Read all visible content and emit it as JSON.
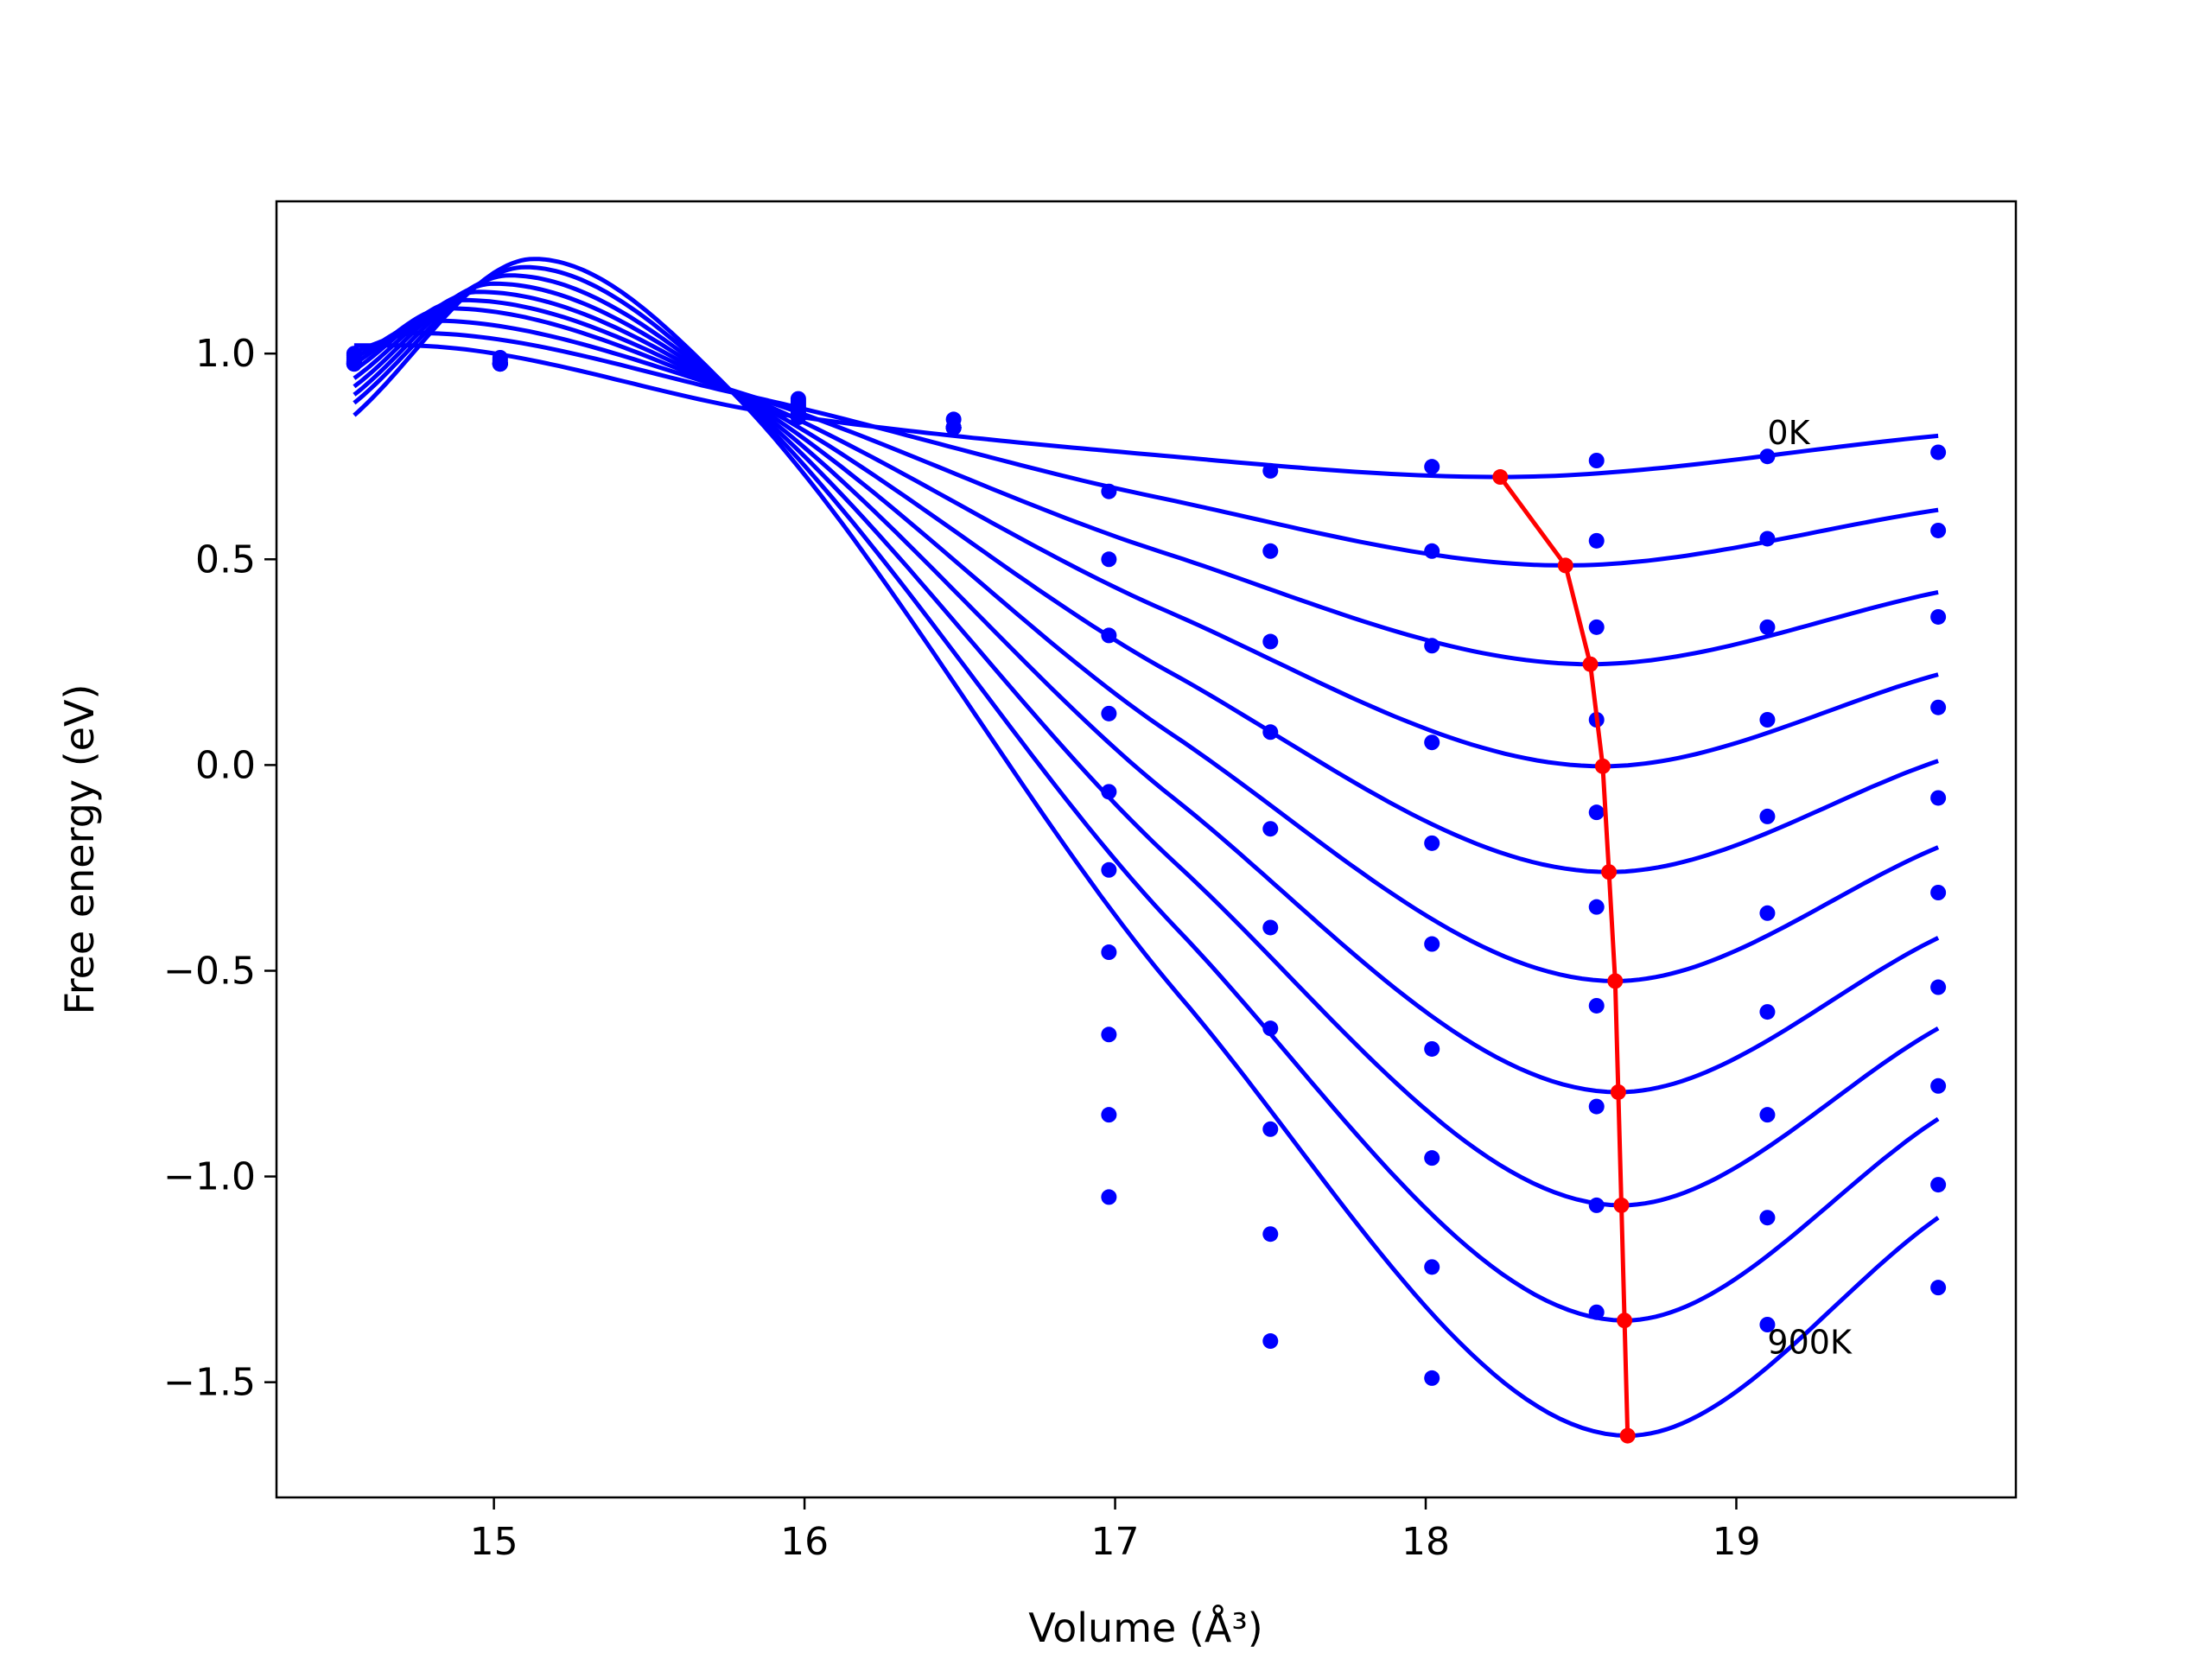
{
  "chart_data": {
    "type": "line",
    "xlabel": "Volume (Å³)",
    "ylabel": "Free energy (eV)",
    "xlim": [
      14.3,
      19.9
    ],
    "ylim": [
      -1.78,
      1.37
    ],
    "xticks": [
      15,
      16,
      17,
      18,
      19
    ],
    "xtick_labels": [
      "15",
      "16",
      "17",
      "18",
      "19"
    ],
    "yticks": [
      1.0,
      0.5,
      0.0,
      -0.5,
      -1.0,
      -1.5
    ],
    "ytick_labels": [
      "1.0",
      "0.5",
      "0.0",
      "−0.5",
      "−1.0",
      "−1.5"
    ],
    "grid": false,
    "annotations": [
      {
        "text": "0K",
        "x": 19.1,
        "y": 0.78
      },
      {
        "text": "900K",
        "x": 19.1,
        "y": -1.43
      }
    ],
    "colors": {
      "fit_curves": "#0000ff",
      "data_points": "#0000ff",
      "minimum_path": "#ff0000"
    },
    "fit_curves": {
      "v0": [
        18.24,
        18.45,
        18.53,
        18.57,
        18.59,
        18.61,
        18.62,
        18.63,
        18.64,
        18.65
      ],
      "e0": [
        0.7,
        0.485,
        0.245,
        -0.003,
        -0.26,
        -0.525,
        -0.795,
        -1.07,
        -1.35,
        -1.63
      ],
      "start_v": 14.55,
      "start_e": [
        1.02,
        1.005,
        0.99,
        0.975,
        0.96,
        0.94,
        0.92,
        0.9,
        0.88,
        0.85
      ],
      "end_v": 19.65,
      "end_e": [
        0.8,
        0.62,
        0.42,
        0.22,
        0.01,
        -0.2,
        -0.42,
        -0.64,
        -0.86,
        -1.1
      ],
      "peak": [
        [
          14.7,
          1.02
        ],
        [
          14.75,
          1.05
        ],
        [
          14.8,
          1.08
        ],
        [
          14.85,
          1.11
        ],
        [
          14.9,
          1.13
        ],
        [
          14.95,
          1.15
        ],
        [
          15.0,
          1.17
        ],
        [
          15.05,
          1.19
        ],
        [
          15.1,
          1.21
        ],
        [
          15.13,
          1.23
        ]
      ],
      "cross": [
        [
          15.9,
          0.855
        ],
        [
          15.8,
          0.9
        ],
        [
          15.77,
          0.91
        ],
        [
          15.76,
          0.912
        ],
        [
          15.76,
          0.912
        ],
        [
          15.76,
          0.912
        ],
        [
          15.76,
          0.912
        ],
        [
          15.76,
          0.912
        ],
        [
          15.76,
          0.912
        ],
        [
          15.76,
          0.912
        ]
      ]
    },
    "data_points": {
      "x": [
        14.55,
        15.02,
        15.98,
        16.48,
        16.98,
        17.5,
        18.02,
        18.55,
        19.1,
        19.65
      ],
      "series": [
        [
          1.0,
          0.99,
          0.89,
          0.84,
          0.665,
          0.715,
          0.725,
          0.74,
          0.75,
          0.76
        ],
        [
          0.995,
          0.985,
          0.885,
          0.82,
          0.5,
          0.52,
          0.52,
          0.545,
          0.55,
          0.57
        ],
        [
          0.99,
          0.98,
          0.88,
          0.82,
          0.315,
          0.3,
          0.29,
          0.335,
          0.335,
          0.36
        ],
        [
          0.985,
          0.975,
          0.875,
          0.82,
          0.125,
          0.08,
          0.055,
          0.11,
          0.11,
          0.14
        ],
        [
          0.98,
          0.975,
          0.87,
          0.82,
          -0.065,
          -0.155,
          -0.19,
          -0.115,
          -0.125,
          -0.08
        ],
        [
          0.98,
          0.975,
          0.865,
          0.82,
          -0.255,
          -0.395,
          -0.435,
          -0.345,
          -0.36,
          -0.31
        ],
        [
          0.975,
          0.975,
          0.86,
          0.82,
          -0.455,
          -0.64,
          -0.69,
          -0.585,
          -0.6,
          -0.54
        ],
        [
          0.975,
          0.975,
          0.855,
          0.82,
          -0.655,
          -0.885,
          -0.955,
          -0.83,
          -0.85,
          -0.78
        ],
        [
          0.975,
          0.975,
          0.85,
          0.82,
          -0.85,
          -1.14,
          -1.22,
          -1.07,
          -1.1,
          -1.02
        ],
        [
          0.975,
          0.975,
          0.845,
          0.82,
          -1.05,
          -1.4,
          -1.49,
          -1.33,
          -1.36,
          -1.27
        ]
      ]
    },
    "minimum_path": {
      "x": [
        18.24,
        18.45,
        18.53,
        18.57,
        18.59,
        18.61,
        18.62,
        18.63,
        18.64,
        18.65
      ],
      "y": [
        0.7,
        0.485,
        0.245,
        -0.003,
        -0.26,
        -0.525,
        -0.795,
        -1.07,
        -1.35,
        -1.63
      ]
    }
  }
}
